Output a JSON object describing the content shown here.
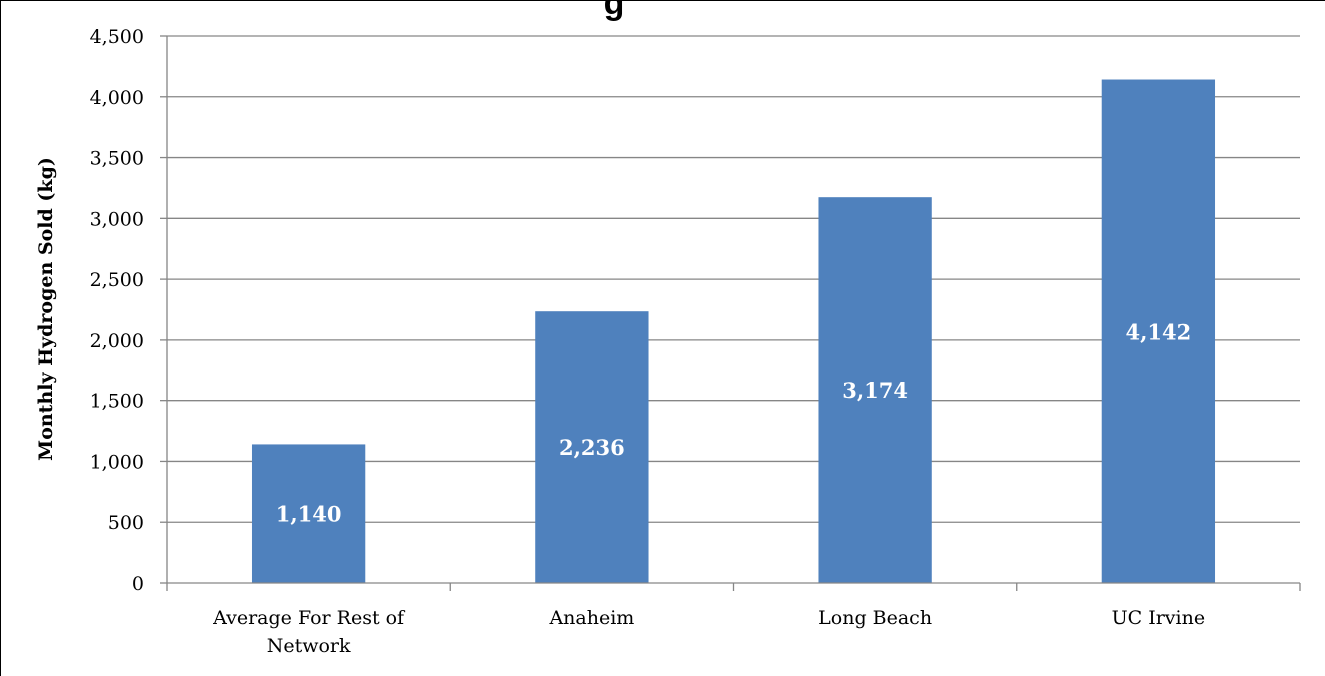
{
  "chart_data": {
    "type": "bar",
    "title": "g",
    "xlabel": "",
    "ylabel": "Monthly Hydrogen Sold (kg)",
    "categories": [
      [
        "Average For Rest of",
        "Network"
      ],
      [
        "Anaheim"
      ],
      [
        "Long Beach"
      ],
      [
        "UC Irvine"
      ]
    ],
    "values": [
      1140,
      2236,
      3174,
      4142
    ],
    "value_labels": [
      "1,140",
      "2,236",
      "3,174",
      "4,142"
    ],
    "ylim": [
      0,
      4500
    ],
    "yticks": [
      0,
      500,
      1000,
      1500,
      2000,
      2500,
      3000,
      3500,
      4000,
      4500
    ],
    "ytick_labels": [
      "0",
      "500",
      "1,000",
      "1,500",
      "2,000",
      "2,500",
      "3,000",
      "3,500",
      "4,000",
      "4,500"
    ],
    "grid": true,
    "legend": "none",
    "bar_color": "#4f81bd",
    "grid_color": "#868686"
  }
}
